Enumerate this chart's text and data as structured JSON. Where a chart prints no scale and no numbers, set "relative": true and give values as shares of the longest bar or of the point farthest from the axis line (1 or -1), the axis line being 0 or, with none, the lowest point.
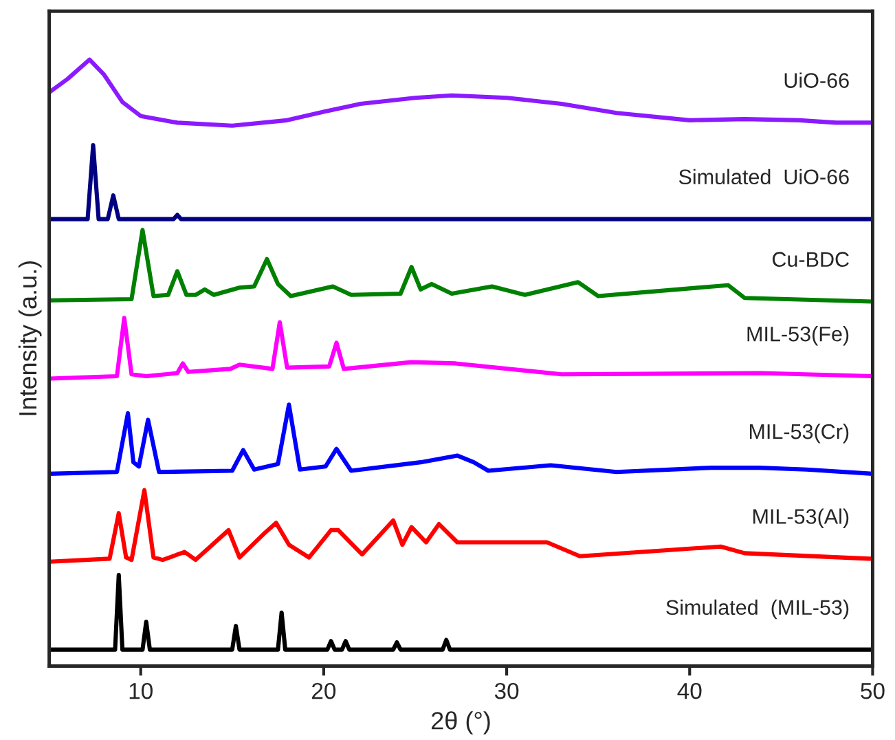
{
  "chart_data": {
    "type": "line",
    "relative": true,
    "xlabel": "2θ (°)",
    "ylabel": "Intensity (a.u.)",
    "xlim": [
      5,
      50
    ],
    "xticks": [
      10,
      20,
      30,
      40,
      50
    ],
    "grid": false,
    "legend": false,
    "marker": "none",
    "line_style": "solid",
    "series": [
      {
        "name": "UiO-66",
        "color": "#8b1aff",
        "x": [
          5,
          6,
          7.2,
          8,
          9,
          10,
          12,
          15,
          18,
          20,
          22,
          25,
          27,
          30,
          33,
          36,
          40,
          43,
          46,
          48,
          50
        ],
        "values": [
          0.946,
          0.968,
          1.0,
          0.975,
          0.93,
          0.907,
          0.896,
          0.891,
          0.9,
          0.914,
          0.927,
          0.937,
          0.941,
          0.937,
          0.927,
          0.912,
          0.9,
          0.902,
          0.9,
          0.896,
          0.896
        ]
      },
      {
        "name": "Simulated  UiO-66",
        "color": "#000080",
        "x": [
          5,
          7.1,
          7.4,
          7.7,
          8.2,
          8.5,
          8.8,
          11.8,
          12,
          12.2,
          50
        ],
        "values": [
          0.737,
          0.737,
          0.859,
          0.737,
          0.737,
          0.776,
          0.737,
          0.737,
          0.744,
          0.737,
          0.737
        ]
      },
      {
        "name": "Cu-BDC",
        "color": "#008000",
        "x": [
          5,
          9.5,
          10.1,
          10.7,
          11.5,
          12.0,
          12.5,
          13.0,
          13.5,
          14.0,
          15.4,
          16.2,
          16.9,
          17.5,
          18.2,
          20.5,
          21.5,
          24.2,
          24.8,
          25.3,
          25.9,
          27,
          29.2,
          31,
          33.9,
          35,
          42.1,
          43,
          50
        ],
        "values": [
          0.603,
          0.605,
          0.719,
          0.61,
          0.612,
          0.651,
          0.612,
          0.612,
          0.621,
          0.612,
          0.624,
          0.626,
          0.671,
          0.63,
          0.61,
          0.626,
          0.612,
          0.614,
          0.658,
          0.621,
          0.63,
          0.614,
          0.626,
          0.612,
          0.633,
          0.61,
          0.628,
          0.607,
          0.601
        ]
      },
      {
        "name": "MIL-53(Fe)",
        "color": "#ff00ff",
        "x": [
          5,
          8.7,
          9.1,
          9.5,
          10.3,
          12.0,
          12.3,
          12.6,
          14.9,
          15.4,
          17.2,
          17.6,
          18.0,
          20.3,
          20.7,
          21.1,
          24.8,
          27.2,
          33,
          43.9,
          50
        ],
        "values": [
          0.474,
          0.478,
          0.574,
          0.481,
          0.478,
          0.483,
          0.499,
          0.485,
          0.49,
          0.497,
          0.49,
          0.567,
          0.492,
          0.494,
          0.533,
          0.49,
          0.501,
          0.499,
          0.481,
          0.483,
          0.478
        ]
      },
      {
        "name": "MIL-53(Cr)",
        "color": "#0000ff",
        "x": [
          5,
          8.7,
          9.3,
          9.6,
          9.9,
          10.4,
          11.0,
          15.0,
          15.6,
          16.2,
          17.5,
          18.1,
          18.7,
          20.1,
          20.7,
          21.5,
          25.3,
          27.3,
          28.2,
          29,
          32.4,
          36,
          41.2,
          43.8,
          46.4,
          50
        ],
        "values": [
          0.317,
          0.32,
          0.417,
          0.336,
          0.329,
          0.406,
          0.32,
          0.322,
          0.356,
          0.324,
          0.333,
          0.431,
          0.324,
          0.329,
          0.358,
          0.322,
          0.336,
          0.347,
          0.336,
          0.322,
          0.331,
          0.32,
          0.327,
          0.327,
          0.324,
          0.317
        ]
      },
      {
        "name": "MIL-53(Al)",
        "color": "#ff0000",
        "x": [
          5,
          8.3,
          8.8,
          9.2,
          9.5,
          10.2,
          10.7,
          11.2,
          12.4,
          13,
          14.8,
          15.4,
          16.8,
          17.4,
          18.1,
          19.2,
          20.4,
          20.8,
          22.1,
          23.8,
          24.3,
          24.8,
          25.6,
          26.3,
          27.3,
          30.4,
          32.2,
          34,
          41.7,
          43,
          49.8,
          50
        ],
        "values": [
          0.172,
          0.177,
          0.252,
          0.179,
          0.175,
          0.29,
          0.179,
          0.175,
          0.188,
          0.175,
          0.224,
          0.179,
          0.22,
          0.236,
          0.2,
          0.179,
          0.224,
          0.224,
          0.184,
          0.24,
          0.2,
          0.229,
          0.204,
          0.234,
          0.204,
          0.204,
          0.204,
          0.181,
          0.197,
          0.186,
          0.177,
          0.177
        ]
      },
      {
        "name": "Simulated  (MIL-53)",
        "color": "#000000",
        "x": [
          5,
          8.6,
          8.8,
          9.0,
          10.1,
          10.3,
          10.5,
          15.0,
          15.2,
          15.4,
          17.5,
          17.7,
          17.9,
          20.2,
          20.4,
          20.6,
          21.0,
          21.2,
          21.4,
          23.8,
          24.0,
          24.2,
          26.5,
          26.7,
          26.9,
          50
        ],
        "values": [
          0.027,
          0.027,
          0.15,
          0.027,
          0.027,
          0.073,
          0.027,
          0.027,
          0.066,
          0.027,
          0.027,
          0.088,
          0.027,
          0.027,
          0.041,
          0.027,
          0.027,
          0.041,
          0.027,
          0.027,
          0.039,
          0.027,
          0.027,
          0.043,
          0.027,
          0.027
        ]
      }
    ]
  }
}
